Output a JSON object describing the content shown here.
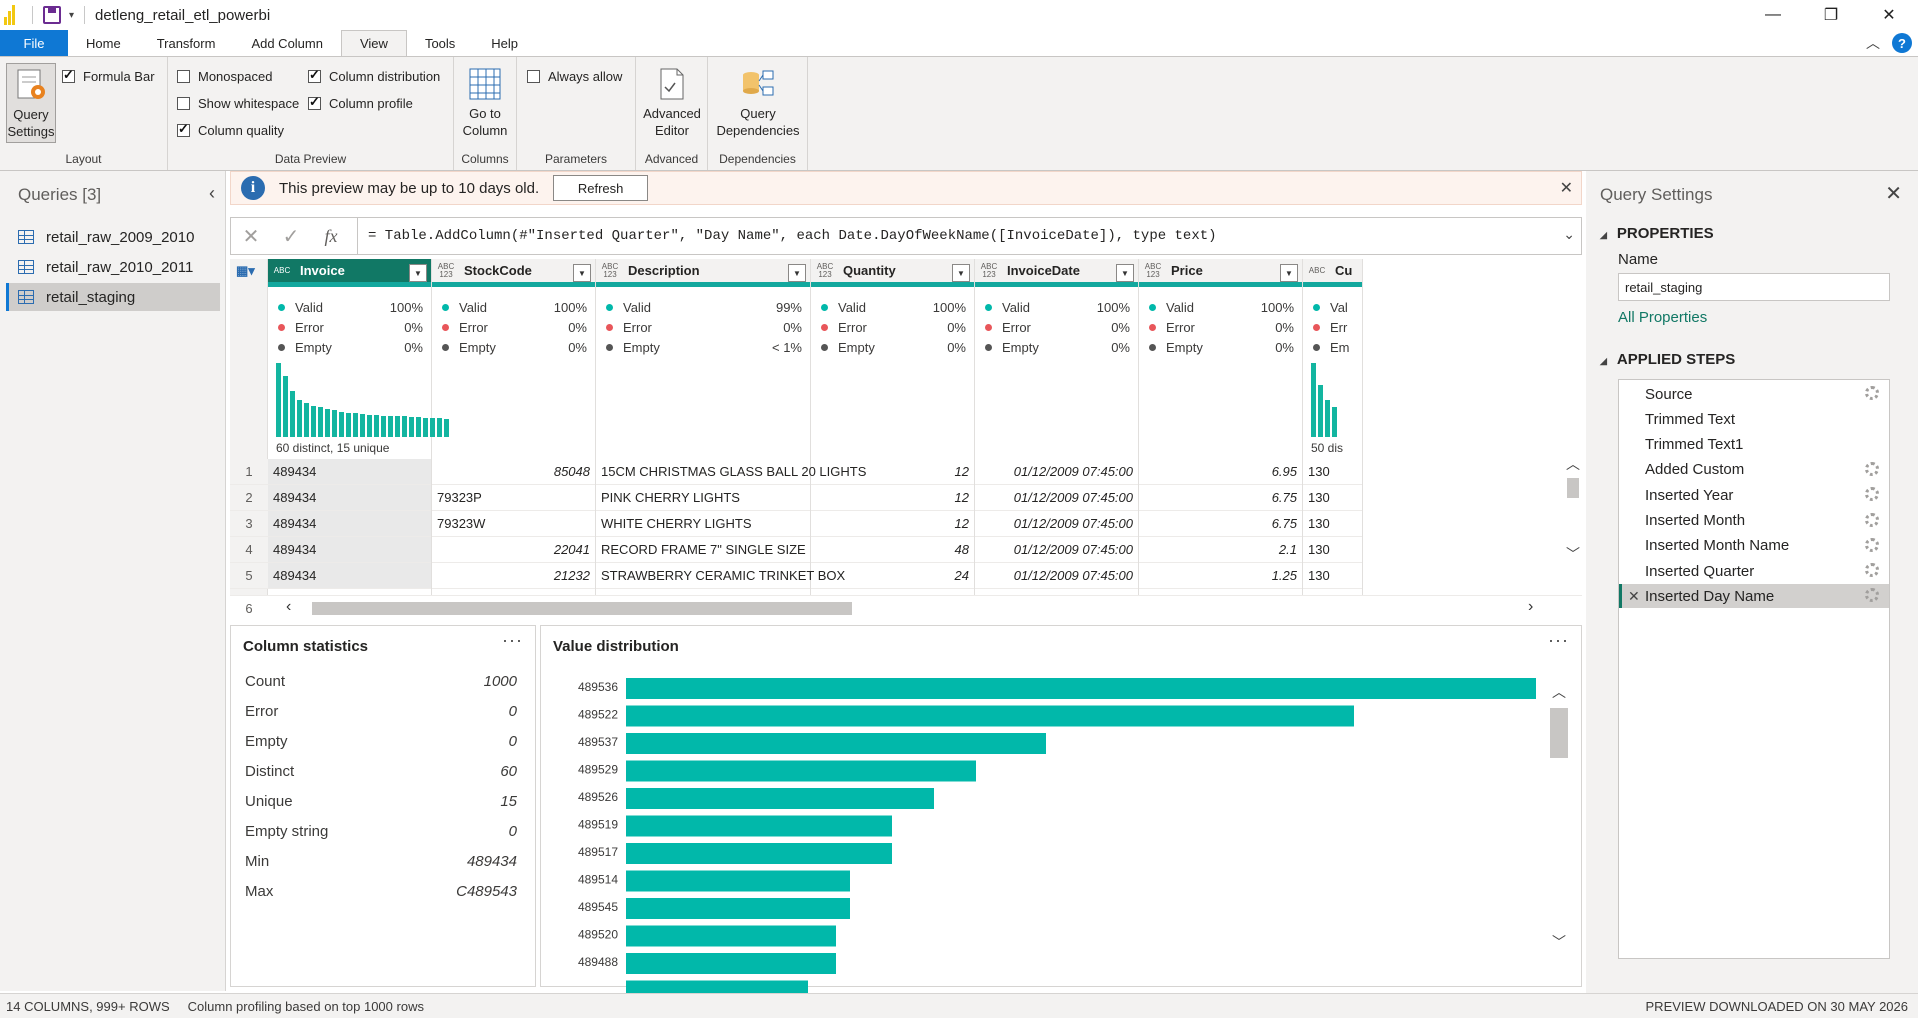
{
  "app": {
    "title": "detleng_retail_etl_powerbi",
    "window_buttons": [
      "—",
      "❐",
      "✕"
    ]
  },
  "tabs": [
    "File",
    "Home",
    "Transform",
    "Add Column",
    "View",
    "Tools",
    "Help"
  ],
  "active_tab": "View",
  "ribbon": {
    "layout": {
      "label": "Layout",
      "query_settings": "Query\nSettings",
      "formula_bar": {
        "label": "Formula Bar",
        "checked": true
      }
    },
    "data_preview": {
      "label": "Data Preview",
      "monospaced": {
        "label": "Monospaced",
        "checked": false
      },
      "show_whitespace": {
        "label": "Show whitespace",
        "checked": false
      },
      "column_quality": {
        "label": "Column quality",
        "checked": true
      },
      "column_distribution": {
        "label": "Column distribution",
        "checked": true
      },
      "column_profile": {
        "label": "Column profile",
        "checked": true
      }
    },
    "columns": {
      "label": "Columns",
      "go_to_column": "Go to\nColumn"
    },
    "parameters": {
      "label": "Parameters",
      "always_allow": {
        "label": "Always allow",
        "checked": false
      }
    },
    "advanced": {
      "label": "Advanced",
      "advanced_editor": "Advanced\nEditor"
    },
    "dependencies": {
      "label": "Dependencies",
      "query_dependencies": "Query\nDependencies"
    }
  },
  "queries": {
    "title": "Queries [3]",
    "items": [
      "retail_raw_2009_2010",
      "retail_raw_2010_2011",
      "retail_staging"
    ],
    "selected": "retail_staging"
  },
  "infobar": {
    "message": "This preview may be up to 10 days old.",
    "refresh_label": "Refresh"
  },
  "formula": {
    "text": "= Table.AddColumn(#\"Inserted Quarter\", \"Day Name\", each Date.DayOfWeekName([InvoiceDate]), type text)"
  },
  "grid": {
    "columns": [
      {
        "name": "Invoice",
        "type": "ABC",
        "valid": "100%",
        "error": "0%",
        "empty": "0%",
        "distinct_label": "60 distinct, 15 unique",
        "selected": true
      },
      {
        "name": "StockCode",
        "type": "ABC\n123",
        "valid": "100%",
        "error": "0%",
        "empty": "0%"
      },
      {
        "name": "Description",
        "type": "ABC\n123",
        "valid": "99%",
        "error": "0%",
        "empty": "< 1%"
      },
      {
        "name": "Quantity",
        "type": "ABC\n123",
        "valid": "100%",
        "error": "0%",
        "empty": "0%"
      },
      {
        "name": "InvoiceDate",
        "type": "ABC\n123",
        "valid": "100%",
        "error": "0%",
        "empty": "0%"
      },
      {
        "name": "Price",
        "type": "ABC\n123",
        "valid": "100%",
        "error": "0%",
        "empty": "0%"
      },
      {
        "name": "Cu",
        "type": "ABC",
        "valid": "Val",
        "error": "Err",
        "empty": "Em",
        "distinct_label": "50 dis"
      }
    ],
    "quality_labels": {
      "valid": "Valid",
      "error": "Error",
      "empty": "Empty"
    },
    "histogram_invoice": [
      100,
      82,
      62,
      50,
      46,
      42,
      40,
      38,
      36,
      34,
      33,
      32,
      31,
      30,
      30,
      29,
      29,
      28,
      28,
      27,
      27,
      26,
      26,
      26,
      25
    ],
    "histogram_cu": [
      100,
      70,
      50,
      40
    ],
    "rows": [
      {
        "n": "1",
        "invoice": "489434",
        "stockcode": "85048",
        "stockcode_num": true,
        "description": "15CM CHRISTMAS GLASS BALL 20 LIGHTS",
        "quantity": "12",
        "invoicedate": "01/12/2009 07:45:00",
        "price": "6.95",
        "cu": "130"
      },
      {
        "n": "2",
        "invoice": "489434",
        "stockcode": "79323P",
        "stockcode_num": false,
        "description": "PINK CHERRY LIGHTS",
        "quantity": "12",
        "invoicedate": "01/12/2009 07:45:00",
        "price": "6.75",
        "cu": "130"
      },
      {
        "n": "3",
        "invoice": "489434",
        "stockcode": "79323W",
        "stockcode_num": false,
        "description": "WHITE CHERRY LIGHTS",
        "quantity": "12",
        "invoicedate": "01/12/2009 07:45:00",
        "price": "6.75",
        "cu": "130"
      },
      {
        "n": "4",
        "invoice": "489434",
        "stockcode": "22041",
        "stockcode_num": true,
        "description": "RECORD FRAME 7\" SINGLE SIZE",
        "quantity": "48",
        "invoicedate": "01/12/2009 07:45:00",
        "price": "2.1",
        "cu": "130"
      },
      {
        "n": "5",
        "invoice": "489434",
        "stockcode": "21232",
        "stockcode_num": true,
        "description": "STRAWBERRY CERAMIC TRINKET BOX",
        "quantity": "24",
        "invoicedate": "01/12/2009 07:45:00",
        "price": "1.25",
        "cu": "130"
      }
    ],
    "partial_row_number": "6"
  },
  "column_statistics": {
    "title": "Column statistics",
    "rows": [
      {
        "label": "Count",
        "value": "1000"
      },
      {
        "label": "Error",
        "value": "0"
      },
      {
        "label": "Empty",
        "value": "0"
      },
      {
        "label": "Distinct",
        "value": "60"
      },
      {
        "label": "Unique",
        "value": "15"
      },
      {
        "label": "Empty string",
        "value": "0"
      },
      {
        "label": "Min",
        "value": "489434"
      },
      {
        "label": "Max",
        "value": "C489543"
      }
    ]
  },
  "chart_data": {
    "type": "bar",
    "title": "Value distribution",
    "orientation": "horizontal",
    "categories": [
      "489536",
      "489522",
      "489537",
      "489529",
      "489526",
      "489519",
      "489517",
      "489514",
      "489545",
      "489520",
      "489488"
    ],
    "values": [
      65,
      52,
      30,
      25,
      22,
      19,
      19,
      16,
      16,
      15,
      15
    ],
    "xlabel": "",
    "ylabel": "",
    "color": "#01b8aa"
  },
  "status": {
    "left": "14 COLUMNS, 999+ ROWS",
    "profiling": "Column profiling based on top 1000 rows",
    "right": "PREVIEW DOWNLOADED ON 30 MAY 2026"
  },
  "settings": {
    "title": "Query Settings",
    "properties_label": "PROPERTIES",
    "name_label": "Name",
    "name_value": "retail_staging",
    "all_properties": "All Properties",
    "applied_steps_label": "APPLIED STEPS",
    "steps": [
      {
        "label": "Source",
        "gear": true
      },
      {
        "label": "Trimmed Text",
        "gear": false
      },
      {
        "label": "Trimmed Text1",
        "gear": false
      },
      {
        "label": "Added Custom",
        "gear": true
      },
      {
        "label": "Inserted Year",
        "gear": true
      },
      {
        "label": "Inserted Month",
        "gear": true
      },
      {
        "label": "Inserted Month Name",
        "gear": true
      },
      {
        "label": "Inserted Quarter",
        "gear": true
      },
      {
        "label": "Inserted Day Name",
        "gear": true,
        "selected": true
      }
    ]
  }
}
